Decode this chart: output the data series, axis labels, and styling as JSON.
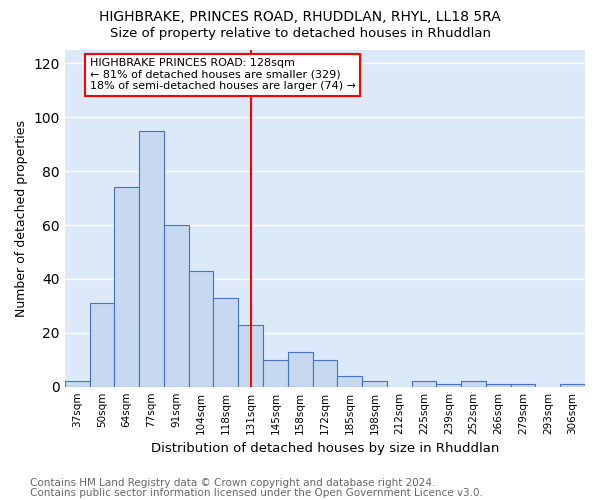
{
  "title1": "HIGHBRAKE, PRINCES ROAD, RHUDDLAN, RHYL, LL18 5RA",
  "title2": "Size of property relative to detached houses in Rhuddlan",
  "xlabel": "Distribution of detached houses by size in Rhuddlan",
  "ylabel": "Number of detached properties",
  "footnote1": "Contains HM Land Registry data © Crown copyright and database right 2024.",
  "footnote2": "Contains public sector information licensed under the Open Government Licence v3.0.",
  "bar_labels": [
    "37sqm",
    "50sqm",
    "64sqm",
    "77sqm",
    "91sqm",
    "104sqm",
    "118sqm",
    "131sqm",
    "145sqm",
    "158sqm",
    "172sqm",
    "185sqm",
    "198sqm",
    "212sqm",
    "225sqm",
    "239sqm",
    "252sqm",
    "266sqm",
    "279sqm",
    "293sqm",
    "306sqm"
  ],
  "bar_values": [
    2,
    31,
    74,
    95,
    60,
    43,
    33,
    23,
    10,
    13,
    10,
    4,
    2,
    0,
    2,
    1,
    2,
    1,
    1,
    0,
    1
  ],
  "bar_color": "#c6d9f0",
  "bar_edge_color": "#4472c4",
  "vline_x_index": 7,
  "vline_color": "red",
  "annotation_line1": "HIGHBRAKE PRINCES ROAD: 128sqm",
  "annotation_line2": "← 81% of detached houses are smaller (329)",
  "annotation_line3": "18% of semi-detached houses are larger (74) →",
  "annotation_box_color": "white",
  "annotation_box_edge": "red",
  "ylim": [
    0,
    125
  ],
  "yticks": [
    0,
    20,
    40,
    60,
    80,
    100,
    120
  ],
  "bg_color": "#dce9f8",
  "grid_color": "white",
  "title1_fontsize": 10,
  "title2_fontsize": 9.5,
  "xlabel_fontsize": 9.5,
  "ylabel_fontsize": 9,
  "tick_fontsize": 7.5,
  "annotation_fontsize": 8,
  "footnote_fontsize": 7.5
}
